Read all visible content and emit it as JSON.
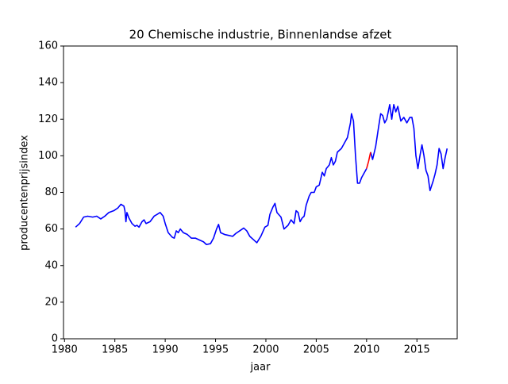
{
  "chart_data": {
    "type": "line",
    "title": "20 Chemische industrie, Binnenlandse afzet",
    "xlabel": "jaar",
    "ylabel": "producentenprijsindex",
    "xlim": [
      1979.9,
      2019.0
    ],
    "ylim": [
      0,
      160
    ],
    "xticks": [
      1980,
      1985,
      1990,
      1995,
      2000,
      2005,
      2010,
      2015
    ],
    "yticks": [
      0,
      20,
      40,
      60,
      80,
      100,
      120,
      140,
      160
    ],
    "grid": false,
    "series": [
      {
        "color": "#0000ff",
        "x": [
          1981.1,
          1981.5,
          1981.9,
          1982.3,
          1982.8,
          1983.2,
          1983.6,
          1984.0,
          1984.4,
          1984.9,
          1985.3,
          1985.6,
          1985.9,
          1986.0,
          1986.1,
          1986.2,
          1986.4,
          1986.7,
          1987.0,
          1987.2,
          1987.4,
          1987.7,
          1987.9,
          1988.1,
          1988.5,
          1988.9,
          1989.2,
          1989.5,
          1989.8,
          1990.0,
          1990.3,
          1990.7,
          1990.9,
          1991.1,
          1991.3,
          1991.5,
          1991.8,
          1992.2,
          1992.6,
          1993.0,
          1993.4,
          1993.8,
          1994.1,
          1994.5,
          1994.8,
          1995.1,
          1995.3,
          1995.5,
          1995.9,
          1996.3,
          1996.7,
          1997.0,
          1997.4,
          1997.8,
          1998.1,
          1998.4,
          1998.8,
          1999.1,
          1999.5,
          1999.9,
          2000.2,
          2000.4,
          2000.7,
          2000.9,
          2001.1,
          2001.5,
          2001.8,
          2002.2,
          2002.5,
          2002.8,
          2003.0,
          2003.2,
          2003.4,
          2003.6,
          2003.8,
          2004.0,
          2004.3,
          2004.5,
          2004.8,
          2005.0,
          2005.3,
          2005.6,
          2005.8,
          2006.0,
          2006.3,
          2006.5,
          2006.7,
          2006.9,
          2007.1,
          2007.5,
          2007.8,
          2008.1,
          2008.4,
          2008.5,
          2008.7,
          2008.9,
          2009.1,
          2009.3,
          2009.5,
          2009.8,
          2010.0,
          2010.2,
          2010.4,
          2010.6,
          2010.9,
          2011.2,
          2011.4,
          2011.6,
          2011.8,
          2012.0,
          2012.3,
          2012.5,
          2012.7,
          2012.9,
          2013.1,
          2013.4,
          2013.7,
          2014.0,
          2014.3,
          2014.5,
          2014.7,
          2014.9,
          2015.1,
          2015.3,
          2015.5,
          2015.7,
          2015.9,
          2016.1,
          2016.3,
          2016.6,
          2016.8,
          2017.0,
          2017.2,
          2017.4,
          2017.6,
          2017.8,
          2018.0
        ],
        "values": [
          61,
          63,
          66.5,
          67,
          66.5,
          67,
          65.5,
          67,
          69,
          70,
          71.5,
          73.5,
          72.5,
          70,
          64,
          69,
          66,
          63,
          61.5,
          62,
          61,
          64,
          65,
          63,
          64,
          67,
          68,
          69,
          67,
          63,
          58,
          55.5,
          55,
          59,
          58,
          60,
          58,
          57,
          55,
          55,
          54,
          53,
          51.5,
          52,
          55,
          60,
          62.5,
          58,
          57,
          56.5,
          56,
          57.5,
          59,
          60.5,
          59,
          56,
          54,
          52.5,
          56,
          61,
          62,
          68,
          72,
          74,
          69,
          66.5,
          60,
          62,
          65,
          63,
          70,
          69,
          64,
          66,
          67,
          73,
          78,
          80,
          80,
          83,
          84,
          91,
          89,
          93,
          95,
          99,
          95,
          97,
          102,
          104,
          107,
          110,
          118,
          123,
          119,
          100,
          85,
          85,
          88,
          91,
          93,
          null,
          102,
          98,
          105,
          116,
          123,
          122,
          118,
          120,
          128,
          120,
          128,
          124,
          127,
          119,
          121,
          118,
          121,
          121,
          115,
          100,
          93,
          100,
          106,
          100,
          92,
          89,
          81,
          86,
          90,
          95,
          104,
          101,
          93,
          99,
          104
        ]
      },
      {
        "color": "#ff0000",
        "x": [
          2010.0,
          2010.2,
          2010.4
        ],
        "values": [
          93,
          97,
          102
        ]
      }
    ]
  }
}
